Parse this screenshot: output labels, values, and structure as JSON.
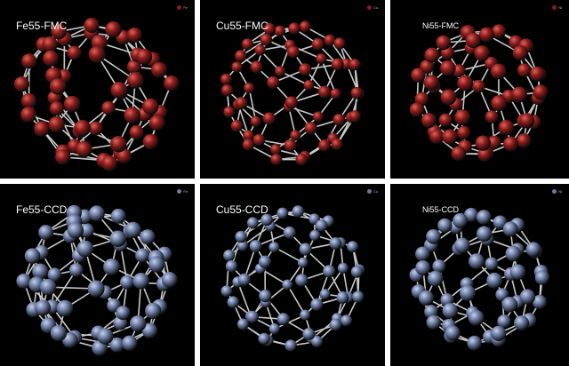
{
  "panels": [
    {
      "label": "Fe55-FMC",
      "element": "Fe",
      "shape": "twisted",
      "atom_color": "#8b1a1a",
      "atom_highlight": "#d9655a"
    },
    {
      "label": "Cu55-FMC",
      "element": "Cu",
      "shape": "cage",
      "atom_color": "#8b1a1a",
      "atom_highlight": "#d9655a"
    },
    {
      "label": "Ni55-FMC",
      "element": "Ni",
      "shape": "shell",
      "atom_color": "#8b1a1a",
      "atom_highlight": "#d9655a"
    },
    {
      "label": "Fe55-CCD",
      "element": "Fe",
      "shape": "twisted",
      "atom_color": "#6a7aa3",
      "atom_highlight": "#c7d0e8"
    },
    {
      "label": "Cu55-CCD",
      "element": "Cu",
      "shape": "cage",
      "atom_color": "#6a7aa3",
      "atom_highlight": "#c7d0e8"
    },
    {
      "label": "Ni55-CCD",
      "element": "Ni",
      "shape": "shell",
      "atom_color": "#6a7aa3",
      "atom_highlight": "#c7d0e8"
    }
  ],
  "bond_color": "#c8c8c8",
  "background_color": "#000000"
}
